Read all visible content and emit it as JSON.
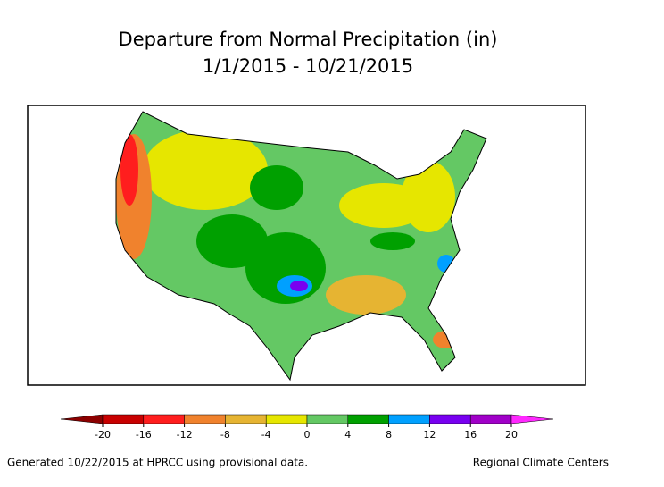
{
  "title": "Departure from Normal Precipitation (in)",
  "subtitle": "1/1/2015 - 10/21/2015",
  "legend": {
    "ticks": [
      -20,
      -16,
      -12,
      -8,
      -4,
      0,
      4,
      8,
      12,
      16,
      20
    ],
    "colors": [
      "#8c0000",
      "#c80000",
      "#ff1e1e",
      "#f0822d",
      "#e6b432",
      "#e6e600",
      "#64c864",
      "#00a000",
      "#00a0ff",
      "#7800f0",
      "#a000c8",
      "#ff28ff"
    ]
  },
  "footer": {
    "left": "Generated 10/22/2015 at HPRCC using provisional data.",
    "right": "Regional Climate Centers"
  }
}
